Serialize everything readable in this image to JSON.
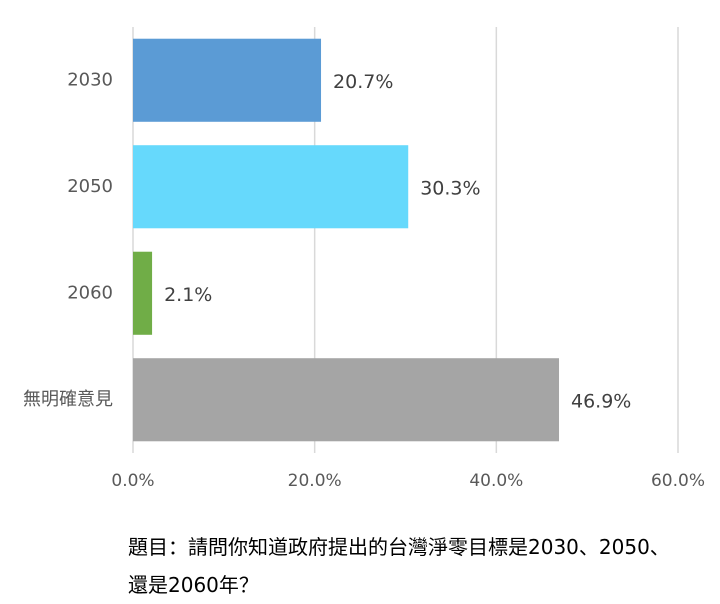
{
  "chart_data": {
    "type": "bar",
    "orientation": "horizontal",
    "categories": [
      "2030",
      "2050",
      "2060",
      "無明確意見"
    ],
    "values": [
      20.7,
      30.3,
      2.1,
      46.9
    ],
    "value_labels": [
      "20.7%",
      "30.3%",
      "2.1%",
      "46.9%"
    ],
    "colors": [
      "#5b9bd5",
      "#66d9fc",
      "#70ad47",
      "#a5a5a5"
    ],
    "xlim": [
      0,
      60
    ],
    "xticks": [
      {
        "value": 0,
        "label": "0.0%"
      },
      {
        "value": 20,
        "label": "20.0%"
      },
      {
        "value": 40,
        "label": "40.0%"
      },
      {
        "value": 60,
        "label": "60.0%"
      }
    ],
    "grid": true,
    "caption": "題目：請問你知道政府提出的台灣淨零目標是2030、2050、還是2060年？"
  }
}
